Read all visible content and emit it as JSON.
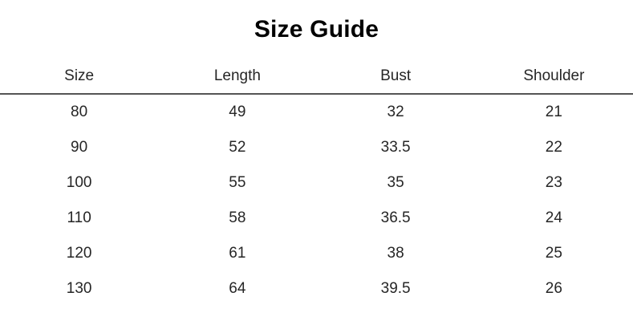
{
  "page": {
    "title": "Size Guide"
  },
  "table": {
    "headers": [
      "Size",
      "Length",
      "Bust",
      "Shoulder"
    ],
    "rows": [
      [
        "80",
        "49",
        "32",
        "21"
      ],
      [
        "90",
        "52",
        "33.5",
        "22"
      ],
      [
        "100",
        "55",
        "35",
        "23"
      ],
      [
        "110",
        "58",
        "36.5",
        "24"
      ],
      [
        "120",
        "61",
        "38",
        "25"
      ],
      [
        "130",
        "64",
        "39.5",
        "26"
      ]
    ]
  },
  "colors": {
    "background": "#ffffff",
    "title_text": "#000000",
    "body_text": "#262626",
    "divider": "#555555"
  }
}
